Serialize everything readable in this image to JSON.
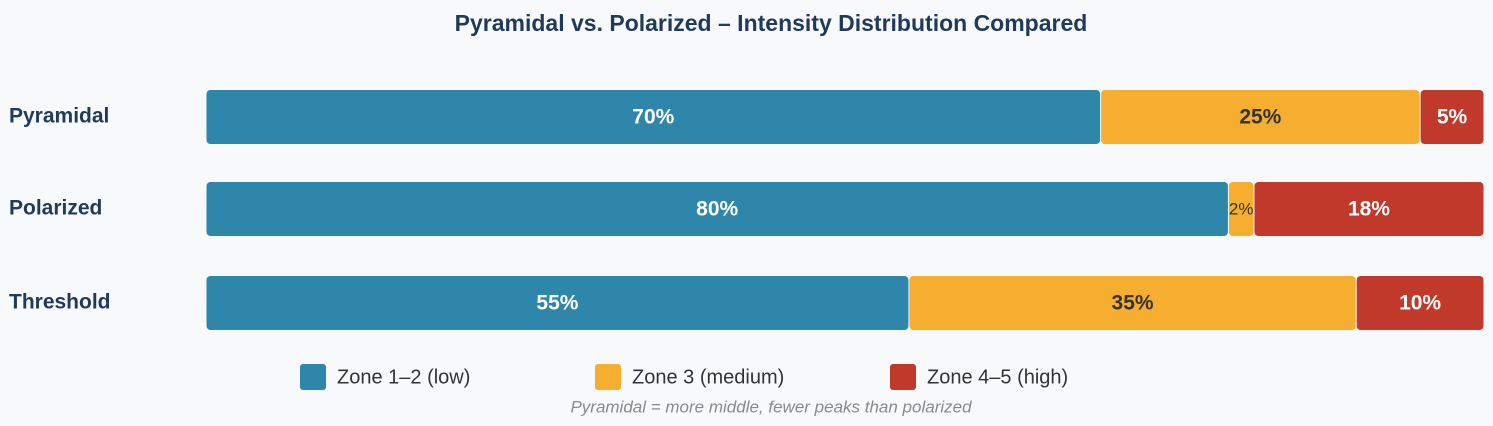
{
  "chart_data": {
    "type": "stacked-bar-horizontal",
    "title": "Pyramidal vs. Polarized – Intensity Distribution Compared",
    "categories": [
      "Pyramidal",
      "Polarized",
      "Threshold"
    ],
    "xlim": [
      0,
      100
    ],
    "series": [
      {
        "name": "Zone 1–2 (low)",
        "color": "#2e86ab",
        "values": [
          70,
          80,
          55
        ],
        "value_labels": [
          "70%",
          "80%",
          "55%"
        ]
      },
      {
        "name": "Zone 3 (medium)",
        "color": "#f5ae2f",
        "values": [
          25,
          2,
          35
        ],
        "value_labels": [
          "25%",
          "2%",
          "35%"
        ]
      },
      {
        "name": "Zone 4–5 (high)",
        "color": "#c0392b",
        "values": [
          5,
          18,
          10
        ],
        "value_labels": [
          "5%",
          "18%",
          "10%"
        ]
      }
    ],
    "note": "Pyramidal = more middle, fewer peaks than polarized"
  }
}
